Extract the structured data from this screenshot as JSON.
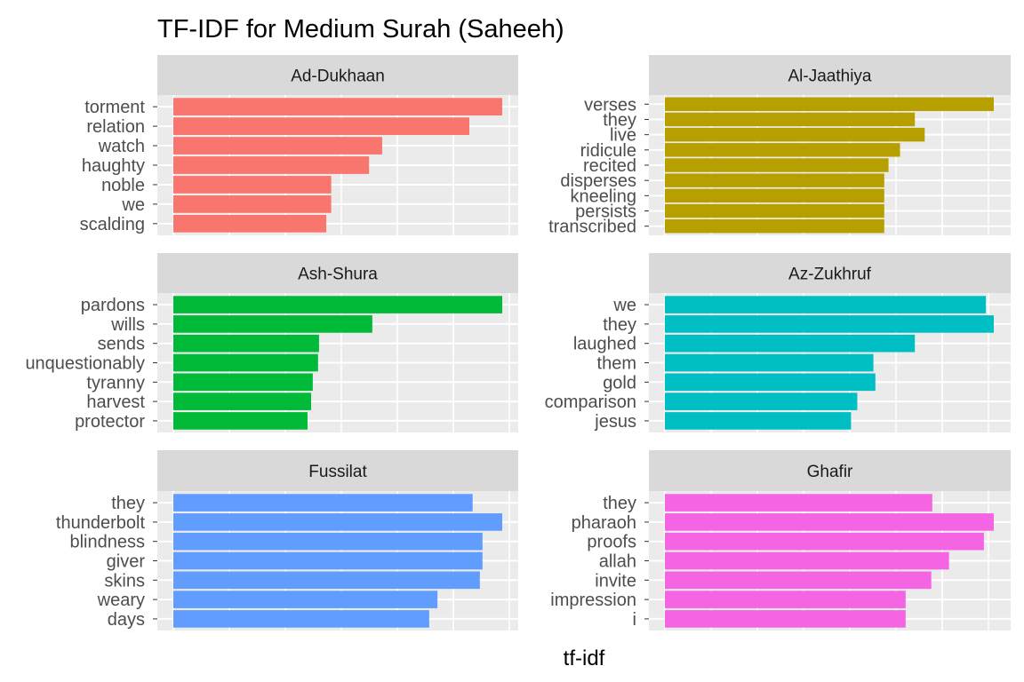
{
  "chart_data": {
    "type": "bar",
    "orientation": "horizontal",
    "title": "TF-IDF for Medium Surah (Saheeh)",
    "xlabel": "tf-idf",
    "ylabel": "",
    "x_tick_labels_shown": false,
    "grid": true,
    "legend": "none",
    "value_units": "relative to largest bar in panel (no axis tick labels printed)",
    "panels": [
      {
        "name": "Ad-Dukhaan",
        "color": "#F8766D",
        "categories": [
          "torment",
          "relation",
          "watch",
          "haughty",
          "noble",
          "we",
          "scalding"
        ],
        "values": [
          1.0,
          0.9,
          0.635,
          0.595,
          0.48,
          0.48,
          0.465
        ]
      },
      {
        "name": "Al-Jaathiya",
        "color": "#B79F00",
        "categories": [
          "verses",
          "they",
          "live",
          "ridicule",
          "recited",
          "disperses",
          "kneeling",
          "persists",
          "transcribed"
        ],
        "values": [
          1.0,
          0.76,
          0.79,
          0.715,
          0.68,
          0.667,
          0.667,
          0.667,
          0.667
        ]
      },
      {
        "name": "Ash-Shura",
        "color": "#00BA38",
        "categories": [
          "pardons",
          "wills",
          "sends",
          "unquestionably",
          "tyranny",
          "harvest",
          "protector"
        ],
        "values": [
          1.0,
          0.605,
          0.443,
          0.44,
          0.424,
          0.419,
          0.408
        ]
      },
      {
        "name": "Az-Zukhruf",
        "color": "#00BFC4",
        "categories": [
          "we",
          "they",
          "laughed",
          "them",
          "gold",
          "comparison",
          "jesus"
        ],
        "values": [
          0.976,
          1.0,
          0.76,
          0.634,
          0.64,
          0.585,
          0.566
        ]
      },
      {
        "name": "Fussilat",
        "color": "#619CFF",
        "categories": [
          "they",
          "thunderbolt",
          "blindness",
          "giver",
          "skins",
          "weary",
          "days"
        ],
        "values": [
          0.91,
          1.0,
          0.94,
          0.94,
          0.932,
          0.803,
          0.778
        ]
      },
      {
        "name": "Ghafir",
        "color": "#F564E3",
        "categories": [
          "they",
          "pharaoh",
          "proofs",
          "allah",
          "invite",
          "impression",
          "i"
        ],
        "values": [
          0.813,
          1.0,
          0.97,
          0.864,
          0.81,
          0.732,
          0.732
        ]
      }
    ]
  }
}
